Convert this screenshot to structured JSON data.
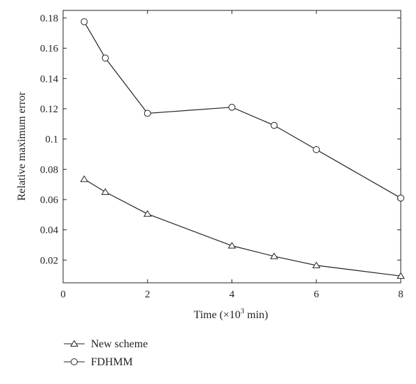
{
  "chart_data": {
    "type": "line",
    "xlabel_prefix": "Time (×10",
    "xlabel_exp": "3",
    "xlabel_suffix": " min)",
    "ylabel": "Relative maximum error",
    "xlim": [
      0,
      8
    ],
    "ylim": [
      0.005,
      0.185
    ],
    "xticks": [
      0,
      2,
      4,
      6,
      8
    ],
    "xtick_labels": [
      "0",
      "2",
      "4",
      "6",
      "8"
    ],
    "yticks": [
      0.02,
      0.04,
      0.06,
      0.08,
      0.1,
      0.12,
      0.14,
      0.16,
      0.18
    ],
    "ytick_labels": [
      "0.02",
      "0.04",
      "0.06",
      "0.08",
      "0.1",
      "0.12",
      "0.14",
      "0.16",
      "0.18"
    ],
    "grid": false,
    "legend_position": "bottom-left, below plot",
    "series": [
      {
        "name": "New scheme",
        "marker": "triangle",
        "x": [
          0.5,
          1,
          2,
          4,
          5,
          6,
          8
        ],
        "y": [
          0.0735,
          0.065,
          0.0505,
          0.0295,
          0.0225,
          0.0165,
          0.0095
        ]
      },
      {
        "name": "FDHMM",
        "marker": "circle",
        "x": [
          0.5,
          1,
          2,
          4,
          5,
          6,
          8
        ],
        "y": [
          0.1775,
          0.1535,
          0.117,
          0.121,
          0.109,
          0.093,
          0.061
        ]
      }
    ],
    "colors": {
      "line": "#231f20",
      "frame": "#231f20",
      "background": "#ffffff"
    }
  }
}
